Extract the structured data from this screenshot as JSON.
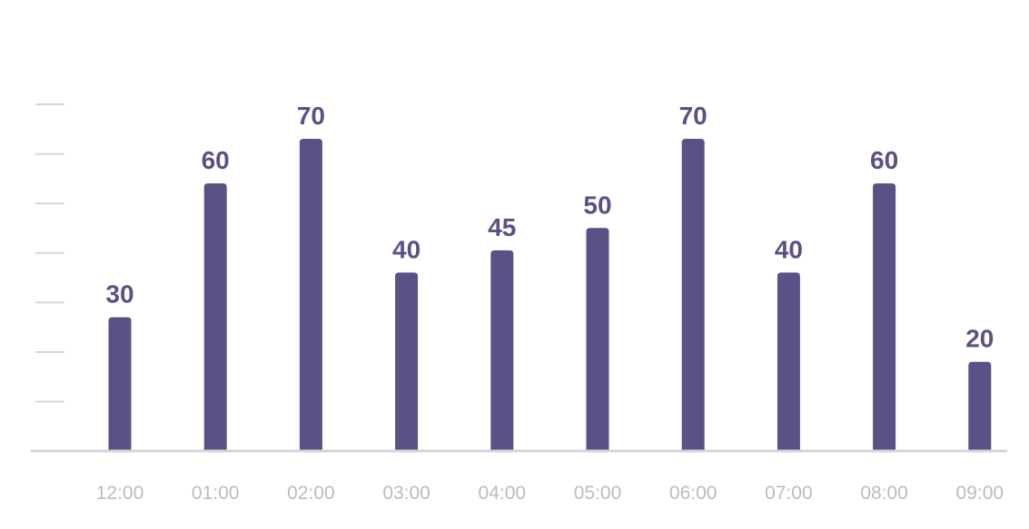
{
  "chart_data": {
    "type": "bar",
    "categories": [
      "12:00",
      "01:00",
      "02:00",
      "03:00",
      "04:00",
      "05:00",
      "06:00",
      "07:00",
      "08:00",
      "09:00"
    ],
    "values": [
      30,
      60,
      70,
      40,
      45,
      50,
      70,
      40,
      60,
      20
    ],
    "title": "",
    "xlabel": "",
    "ylabel": "",
    "ylim": [
      0,
      70
    ],
    "grid": false,
    "legend": "none",
    "colors": {
      "bar": "#5a5186",
      "data_label": "#5a5186",
      "x_tick_label": "#bcbcbc",
      "axis": "#d0d4d8",
      "y_tick_mark": "#d6d6d6"
    }
  }
}
